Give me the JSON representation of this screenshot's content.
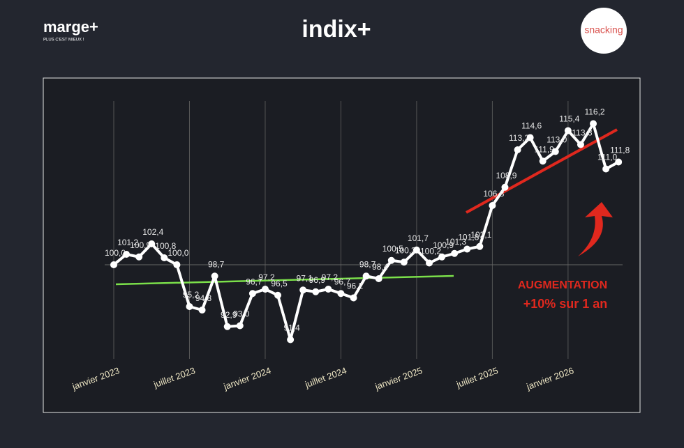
{
  "header": {
    "left_logo": "marge+",
    "left_tagline": "PLUS C'EST MIEUX !",
    "center_logo": "indix+",
    "right_logo": "snacking"
  },
  "chart_data": {
    "type": "line",
    "categories": [
      "janvier 2023",
      null,
      null,
      null,
      null,
      null,
      "juillet 2023",
      null,
      null,
      null,
      null,
      null,
      "janvier 2024",
      null,
      null,
      null,
      null,
      null,
      "juillet 2024",
      null,
      null,
      null,
      null,
      null,
      "janvier 2025",
      null,
      null,
      null,
      null,
      null,
      "juillet 2025",
      null,
      null,
      null,
      null,
      null,
      "janvier 2026",
      null,
      null,
      null,
      null
    ],
    "series": [
      {
        "color": "#ffffff",
        "values": [
          100.0,
          101.2,
          100.9,
          102.4,
          100.8,
          100.0,
          95.2,
          94.8,
          98.7,
          92.9,
          93.0,
          96.7,
          97.2,
          96.5,
          91.4,
          97.1,
          96.9,
          97.2,
          96.7,
          96.2,
          98.7,
          98.4,
          100.5,
          100.3,
          101.7,
          100.2,
          100.9,
          101.3,
          101.8,
          102.1,
          106.8,
          108.9,
          113.2,
          114.6,
          111.9,
          113.0,
          115.4,
          113.8,
          116.2,
          111.0,
          111.8
        ],
        "value_labels": [
          "100,0",
          "101,2",
          "100,9",
          "102,4",
          "100,8",
          "100,0",
          "95,2",
          "94,8",
          "98,7",
          "92,9",
          "93,0",
          "96,7",
          "97,2",
          "96,5",
          "91,4",
          "97,1",
          "96,9",
          "97,2",
          "96,7",
          "96,2",
          "98,7",
          "98,4",
          "100,5",
          "100,3",
          "101,7",
          "100,2",
          "100,9",
          "101,3",
          "101,8",
          "102,1",
          "106,8",
          "108,9",
          "113,2",
          "114,6",
          "111,9",
          "113,0",
          "115,4",
          "113,8",
          "116,2",
          "111,0",
          "111,8"
        ]
      }
    ],
    "ylim": [
      89.2,
      118.8
    ],
    "yticks": [
      100
    ],
    "grid": true,
    "annotations": [
      "AUGMENTATION",
      "+10% sur 1 an"
    ]
  }
}
